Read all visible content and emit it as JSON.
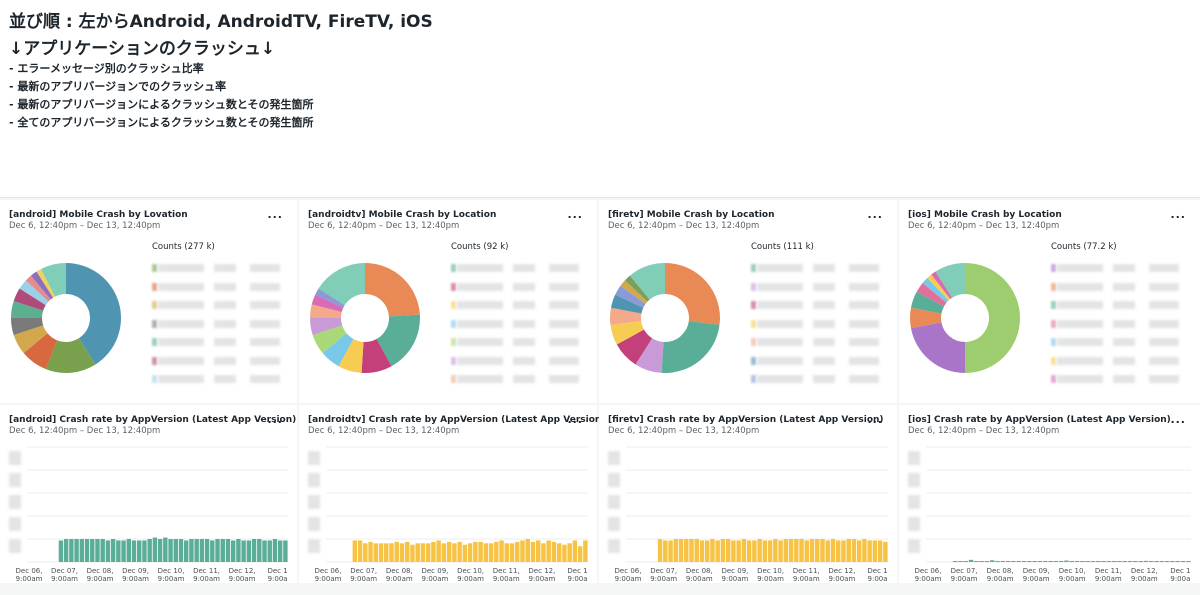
{
  "header": {
    "title_order": "並び順 : 左からAndroid, AndroidTV, FireTV, iOS",
    "title_crash": "↓アプリケーションのクラッシュ↓",
    "bullets": [
      "- エラーメッセージ別のクラッシュ比率",
      "- 最新のアプリバージョンでのクラッシュ率",
      "- 最新のアプリバージョンによるクラッシュ数とその発生箇所",
      "- 全てのアプリバージョンによるクラッシュ数とその発生箇所"
    ]
  },
  "menu_glyph": "...",
  "date_range": "Dec 6, 12:40pm – Dec 13, 12:40pm",
  "pie_panels": [
    {
      "title": "[android] Mobile Crash by Lovation",
      "counts": "Counts (277 k)",
      "slices": [
        41,
        15,
        8,
        6,
        5,
        5,
        4,
        3,
        2,
        2,
        1.5,
        7.5
      ],
      "colors": [
        "#4f94b0",
        "#79a14d",
        "#d7683f",
        "#d3a84d",
        "#7a7a7a",
        "#5cb08f",
        "#b04a7a",
        "#9ad1e8",
        "#e58c8c",
        "#8c6fbf",
        "#f0d060",
        "#80cdb8"
      ]
    },
    {
      "title": "[androidtv] Mobile Crash by Location",
      "counts": "Counts (92 k)",
      "slices": [
        24,
        18,
        9,
        7,
        6,
        6,
        5,
        4,
        3,
        2,
        16
      ],
      "colors": [
        "#e98956",
        "#5aae98",
        "#c4407a",
        "#f6cc52",
        "#79c8e8",
        "#a8d878",
        "#c99ad8",
        "#f4a98a",
        "#d96bb5",
        "#8a9bd6",
        "#80cdb8"
      ]
    },
    {
      "title": "[firetv] Mobile Crash by Location",
      "counts": "Counts (111 k)",
      "slices": [
        27,
        24,
        8,
        8,
        6,
        5,
        4,
        3,
        2,
        2,
        11
      ],
      "colors": [
        "#e98956",
        "#5aae98",
        "#c99ad8",
        "#c4407a",
        "#f6cc52",
        "#f4a98a",
        "#4f94b0",
        "#8a9bd6",
        "#d3a84d",
        "#7aa05a",
        "#80cdb8"
      ]
    },
    {
      "title": "[ios] Mobile Crash by Location",
      "counts": "Counts (77.2 k)",
      "slices": [
        50,
        22,
        6,
        5,
        3,
        2,
        1.5,
        1.5,
        9
      ],
      "colors": [
        "#9dcd6e",
        "#a875c8",
        "#e98956",
        "#5aae98",
        "#e06f9a",
        "#79c8e8",
        "#f6cc52",
        "#d96bb5",
        "#80cdb8"
      ]
    }
  ],
  "bar_panels": [
    {
      "title": "[android] Crash rate by AppVersion (Latest App Version)",
      "color": "#5aae98",
      "values": [
        0,
        0,
        0,
        0,
        0,
        0,
        15,
        16,
        16,
        16,
        16,
        16,
        16,
        16,
        16,
        15,
        16,
        15,
        15,
        16,
        15,
        15,
        15,
        16,
        17,
        16,
        17,
        16,
        16,
        16,
        15,
        16,
        16,
        16,
        16,
        15,
        16,
        16,
        16,
        15,
        16,
        15,
        15,
        16,
        16,
        15,
        15,
        16,
        15,
        15
      ]
    },
    {
      "title": "[androidtv] Crash rate by AppVersion (Latest App Version)",
      "color": "#f6c344",
      "values": [
        0,
        0,
        0,
        0,
        0,
        15,
        15,
        13,
        14,
        13,
        13,
        13,
        13,
        14,
        13,
        14,
        12,
        13,
        13,
        13,
        14,
        15,
        13,
        14,
        13,
        14,
        12,
        13,
        14,
        14,
        13,
        13,
        14,
        15,
        13,
        13,
        14,
        15,
        16,
        14,
        15,
        13,
        15,
        14,
        13,
        12,
        13,
        15,
        11,
        15
      ]
    },
    {
      "title": "[firetv] Crash rate by AppVersion (Latest App Version)",
      "color": "#f6c344",
      "values": [
        0,
        0,
        0,
        0,
        0,
        0,
        16,
        15,
        15,
        16,
        16,
        16,
        16,
        16,
        15,
        15,
        16,
        15,
        16,
        16,
        15,
        15,
        16,
        15,
        15,
        16,
        15,
        15,
        16,
        15,
        16,
        16,
        16,
        16,
        15,
        16,
        16,
        16,
        15,
        16,
        15,
        15,
        16,
        16,
        15,
        16,
        15,
        15,
        15,
        14
      ]
    },
    {
      "title": "[ios] Crash rate by AppVersion (Latest App Version)",
      "color": "#5aae98",
      "values": [
        0,
        0,
        0,
        0,
        0,
        0.5,
        0.3,
        0.4,
        1.5,
        0.3,
        0.4,
        0.3,
        1.2,
        0.4,
        0.3,
        0.5,
        0.3,
        0.6,
        0.4,
        0.3,
        0.4,
        0.3,
        0.5,
        0.3,
        0.4,
        0.3,
        1.0,
        0.3,
        0.4,
        0.3,
        0.5,
        0.4,
        0.3,
        0.3,
        0.4,
        0.3,
        0.5,
        0.4,
        0.3,
        0.3,
        0.4,
        0.8,
        0.3,
        0.4,
        0.3,
        0.5,
        0.3,
        0.4,
        0.3,
        0.3
      ]
    }
  ],
  "x_ticks": [
    [
      "Dec 06,",
      "9:00am"
    ],
    [
      "Dec 07,",
      "9:00am"
    ],
    [
      "Dec 08,",
      "9:00am"
    ],
    [
      "Dec 09,",
      "9:00am"
    ],
    [
      "Dec 10,",
      "9:00am"
    ],
    [
      "Dec 11,",
      "9:00am"
    ],
    [
      "Dec 12,",
      "9:00am"
    ],
    [
      "Dec 1",
      "9:00a"
    ]
  ]
}
